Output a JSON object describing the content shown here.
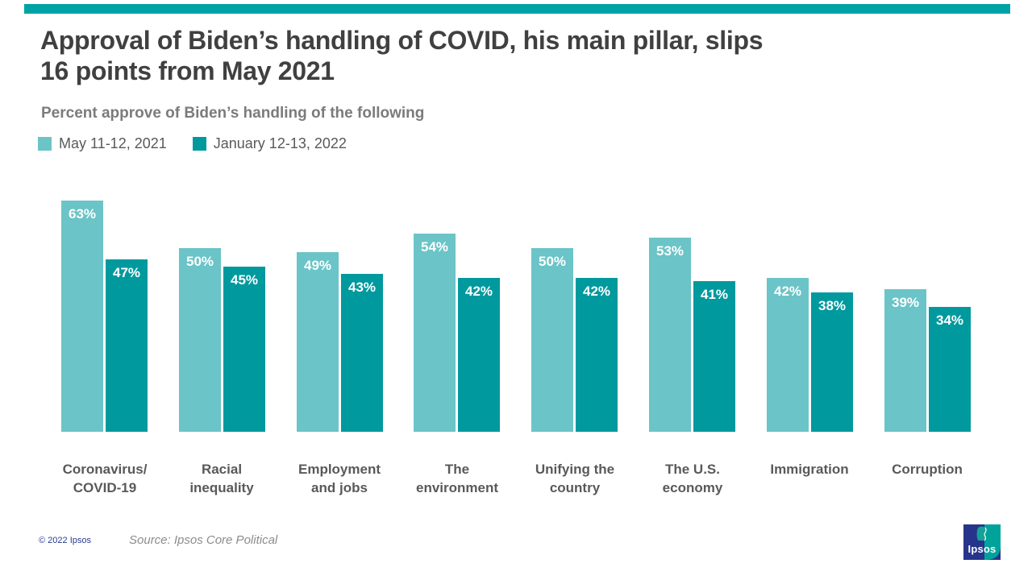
{
  "colors": {
    "accent_bar": "#00a3a5",
    "series_light": "#6bc4c7",
    "series_dark": "#00999e",
    "title_text": "#404041",
    "subtitle_text": "#7b7b7b",
    "label_text": "#595959",
    "copyright_text": "#283a90",
    "logo_blue": "#27348b",
    "logo_teal": "#00a39b"
  },
  "header": {
    "title_line1": "Approval of Biden’s handling of COVID, his main pillar, slips",
    "title_line2": "16 points from May 2021",
    "subtitle": "Percent approve of Biden’s handling of the following"
  },
  "legend": [
    {
      "label": "May 11-12, 2021",
      "color": "#6bc4c7"
    },
    {
      "label": "January 12-13, 2022",
      "color": "#00999e"
    }
  ],
  "chart_data": {
    "type": "bar",
    "title": "Approval of Biden’s handling of COVID, his main pillar, slips 16 points from May 2021",
    "subtitle": "Percent approve of Biden’s handling of the following",
    "categories": [
      "Coronavirus/\nCOVID-19",
      "Racial\ninequality",
      "Employment\nand jobs",
      "The\nenvironment",
      "Unifying the\ncountry",
      "The U.S.\neconomy",
      "Immigration",
      "Corruption"
    ],
    "series": [
      {
        "name": "May 11-12, 2021",
        "color": "#6bc4c7",
        "values": [
          63,
          50,
          49,
          54,
          50,
          53,
          42,
          39
        ]
      },
      {
        "name": "January 12-13, 2022",
        "color": "#00999e",
        "values": [
          47,
          45,
          43,
          42,
          42,
          41,
          38,
          34
        ]
      }
    ],
    "value_suffix": "%",
    "value_labels": "inside-top, white bold",
    "ylim": [
      0,
      66
    ],
    "grid": false,
    "axes_visible": false,
    "legend_position": "top-left"
  },
  "footer": {
    "copyright": "© 2022 Ipsos",
    "source": "Source: Ipsos Core Political",
    "logo_text": "Ipsos"
  }
}
